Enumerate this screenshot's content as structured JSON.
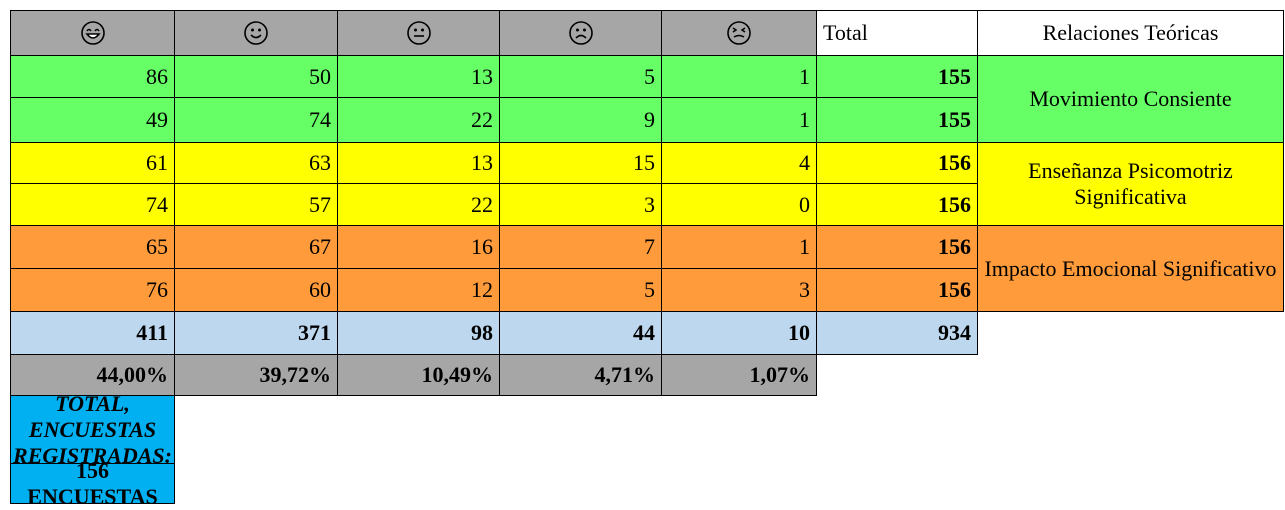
{
  "header": {
    "total": "Total",
    "relations": "Relaciones Teóricas"
  },
  "groups": [
    {
      "label": "Movimiento Consiente",
      "color": "#66ff66",
      "rows": [
        {
          "values": [
            86,
            50,
            13,
            5,
            1
          ],
          "total": 155
        },
        {
          "values": [
            49,
            74,
            22,
            9,
            1
          ],
          "total": 155
        }
      ]
    },
    {
      "label": "Enseñanza Psicomotriz Significativa",
      "color": "#ffff00",
      "rows": [
        {
          "values": [
            61,
            63,
            13,
            15,
            4
          ],
          "total": 156
        },
        {
          "values": [
            74,
            57,
            22,
            3,
            0
          ],
          "total": 156
        }
      ]
    },
    {
      "label": "Impacto Emocional Significativo",
      "color": "#ff9b3b",
      "rows": [
        {
          "values": [
            65,
            67,
            16,
            7,
            1
          ],
          "total": 156
        },
        {
          "values": [
            76,
            60,
            12,
            5,
            3
          ],
          "total": 156
        }
      ]
    }
  ],
  "totals": {
    "values": [
      411,
      371,
      98,
      44,
      10
    ],
    "total": 934
  },
  "percentages": [
    "44,00%",
    "39,72%",
    "10,49%",
    "4,71%",
    "1,07%"
  ],
  "footer": {
    "label": "TOTAL, ENCUESTAS REGISTRADAS:",
    "count": "156 ENCUESTAS"
  }
}
